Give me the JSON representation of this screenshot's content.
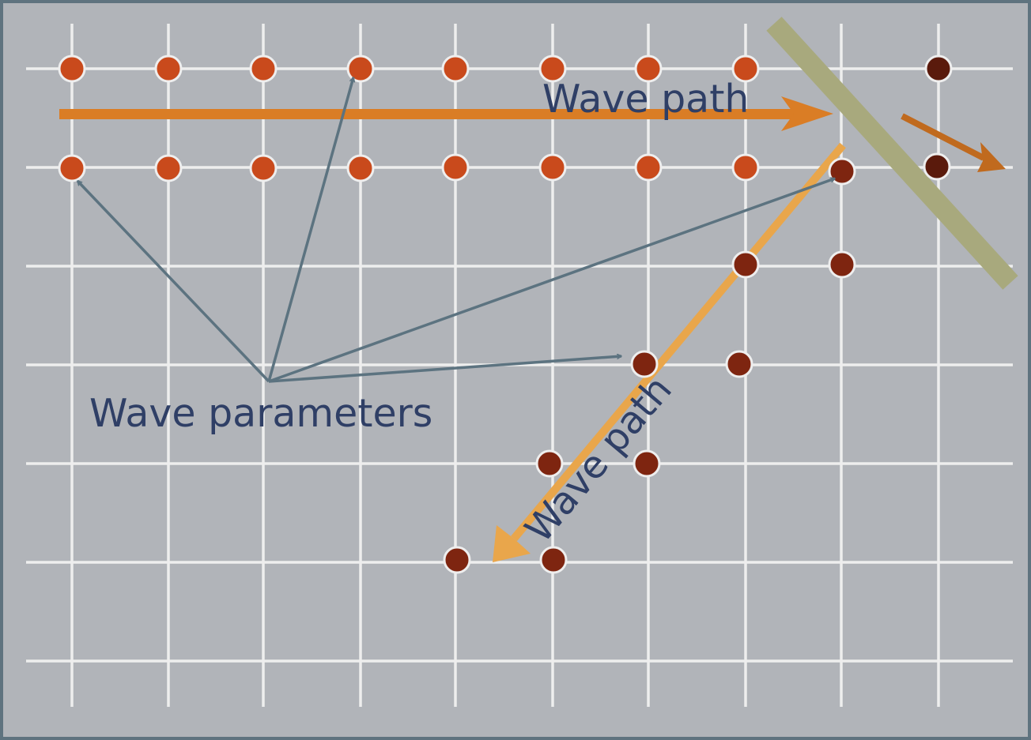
{
  "labels": {
    "wave_path_top": "Wave path",
    "wave_path_diagonal": "Wave path",
    "wave_parameters": "Wave parameters"
  },
  "colors": {
    "background": "#b1b4b9",
    "frame": "#5f737f",
    "grid": "#eeeeee",
    "dot_orange": "#c94a1c",
    "dot_red": "#7e2510",
    "dot_dark": "#5a1a0c",
    "dot_stroke": "#eeeeee",
    "wave_path_arrow": "#da7d25",
    "wave_path_diagonal_arrow": "#e9a64b",
    "reflected_arrow": "#c06a1e",
    "barrier": "#a8a97d",
    "parameter_arrows": "#5c7380",
    "label_text": "#2f3f66"
  }
}
